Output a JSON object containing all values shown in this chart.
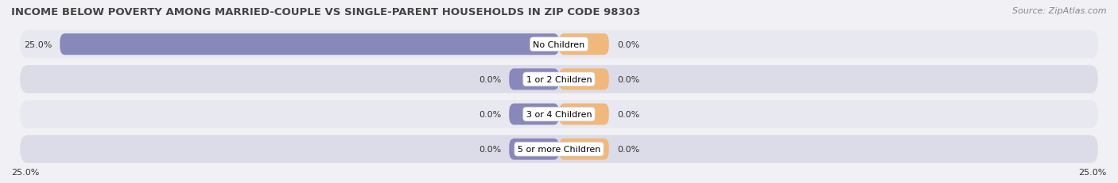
{
  "title": "INCOME BELOW POVERTY AMONG MARRIED-COUPLE VS SINGLE-PARENT HOUSEHOLDS IN ZIP CODE 98303",
  "source": "Source: ZipAtlas.com",
  "categories": [
    "No Children",
    "1 or 2 Children",
    "3 or 4 Children",
    "5 or more Children"
  ],
  "married_values": [
    25.0,
    0.0,
    0.0,
    0.0
  ],
  "single_values": [
    0.0,
    0.0,
    0.0,
    0.0
  ],
  "married_color": "#8888bb",
  "single_color": "#f0b87a",
  "xlim": 25.0,
  "min_bar_width": 2.5,
  "title_fontsize": 9.5,
  "source_fontsize": 8,
  "legend_fontsize": 8.5,
  "value_fontsize": 8,
  "category_fontsize": 8,
  "axis_label_bottom_left": "25.0%",
  "axis_label_bottom_right": "25.0%",
  "background_color": "#f0f0f5",
  "row_colors": [
    "#e8e8f0",
    "#dcdce8"
  ],
  "title_color": "#444444",
  "source_color": "#888888",
  "text_color": "#333333"
}
